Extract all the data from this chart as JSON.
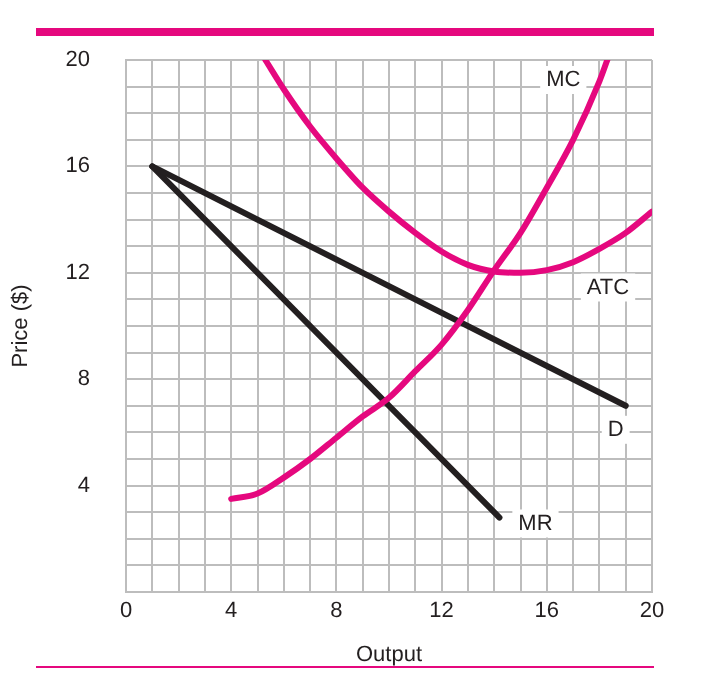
{
  "chart_data": {
    "type": "line",
    "xlabel": "Output",
    "ylabel": "Price ($)",
    "xlim": [
      0,
      20
    ],
    "ylim": [
      0,
      20
    ],
    "xticks": [
      0,
      {
        "value": 1,
        "label": null
      },
      {
        "value": 2,
        "label": null
      },
      {
        "value": 3,
        "label": null
      },
      4,
      {
        "value": 5,
        "label": null
      },
      {
        "value": 6,
        "label": null
      },
      {
        "value": 7,
        "label": null
      },
      8,
      {
        "value": 9,
        "label": null
      },
      {
        "value": 10,
        "label": null
      },
      {
        "value": 11,
        "label": null
      },
      12,
      {
        "value": 13,
        "label": null
      },
      {
        "value": 14,
        "label": null
      },
      {
        "value": 15,
        "label": null
      },
      16,
      {
        "value": 17,
        "label": null
      },
      {
        "value": 18,
        "label": null
      },
      {
        "value": 19,
        "label": null
      },
      20
    ],
    "yticks": [
      {
        "value": 0,
        "label": null
      },
      {
        "value": 1,
        "label": null
      },
      {
        "value": 2,
        "label": null
      },
      {
        "value": 3,
        "label": null
      },
      4,
      {
        "value": 5,
        "label": null
      },
      {
        "value": 6,
        "label": null
      },
      {
        "value": 7,
        "label": null
      },
      8,
      {
        "value": 9,
        "label": null
      },
      {
        "value": 10,
        "label": null
      },
      {
        "value": 11,
        "label": null
      },
      12,
      {
        "value": 13,
        "label": null
      },
      {
        "value": 14,
        "label": null
      },
      {
        "value": 15,
        "label": null
      },
      16,
      {
        "value": 17,
        "label": null
      },
      {
        "value": 18,
        "label": null
      },
      {
        "value": 19,
        "label": null
      },
      20
    ],
    "grid": true,
    "legend": false,
    "marker": "none",
    "line_style": "solid",
    "series": [
      {
        "name": "MC",
        "color": "#e5087e",
        "x": [
          4,
          5,
          6,
          7,
          8,
          9,
          10,
          11,
          12,
          13,
          14,
          15,
          16,
          17,
          18,
          18.3
        ],
        "values": [
          3.5,
          3.7,
          4.3,
          5,
          5.8,
          6.6,
          7.3,
          8.3,
          9.3,
          10.6,
          12.1,
          13.5,
          15.2,
          17,
          19.2,
          20
        ]
      },
      {
        "name": "ATC",
        "color": "#e5087e",
        "x": [
          5.3,
          6,
          7,
          8,
          9,
          10,
          11,
          12,
          13,
          14,
          15,
          16,
          17,
          18,
          19,
          20
        ],
        "values": [
          20,
          18.9,
          17.5,
          16.3,
          15.2,
          14.3,
          13.5,
          12.8,
          12.3,
          12.05,
          12,
          12.1,
          12.4,
          12.9,
          13.5,
          14.3
        ]
      },
      {
        "name": "D",
        "color": "#231f20",
        "x": [
          1,
          19
        ],
        "values": [
          16,
          7
        ]
      },
      {
        "name": "MR",
        "color": "#231f20",
        "x": [
          1,
          14.2
        ],
        "values": [
          16,
          2.8
        ]
      }
    ]
  }
}
